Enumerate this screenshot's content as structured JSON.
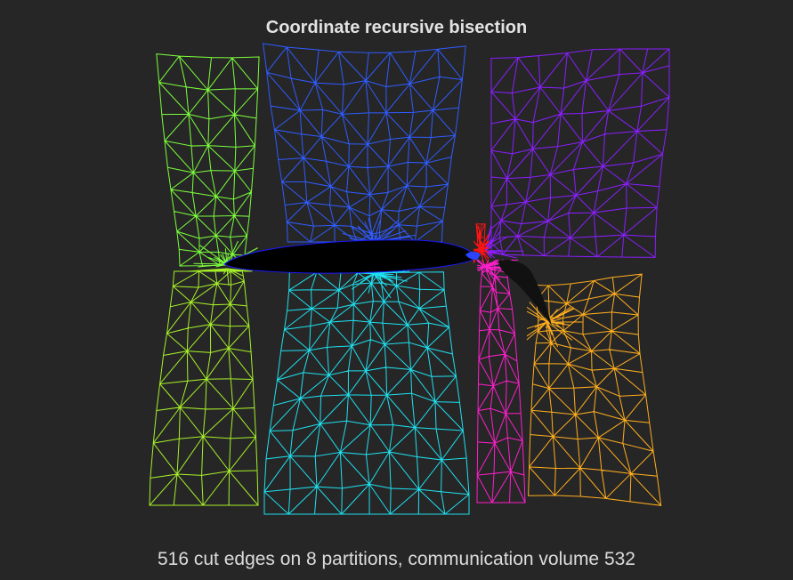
{
  "title": "Coordinate recursive bisection",
  "caption": "516 cut edges on 8 partitions, communication volume 532",
  "partitions": [
    {
      "id": "upper-left",
      "color": "#7cff3c"
    },
    {
      "id": "upper-center",
      "color": "#2f5cff"
    },
    {
      "id": "upper-right",
      "color": "#8a1eff"
    },
    {
      "id": "lower-left",
      "color": "#a6f028"
    },
    {
      "id": "lower-center",
      "color": "#1ee0f0"
    },
    {
      "id": "slat-wake",
      "color": "#ff1ecc"
    },
    {
      "id": "lower-right",
      "color": "#ffae1e"
    },
    {
      "id": "flap-region",
      "color": "#ff1414"
    }
  ],
  "colors": {
    "background": "#262626",
    "airfoil": "#000000"
  }
}
